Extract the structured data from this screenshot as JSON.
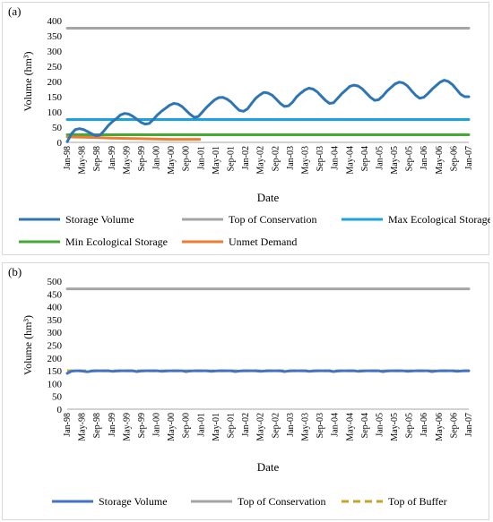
{
  "chart_data": [
    {
      "panel_label": "(a)",
      "type": "line",
      "xlabel": "Date",
      "ylabel": "Volume (hm³)",
      "ylim": [
        0,
        400
      ],
      "yticks": [
        0,
        50,
        100,
        150,
        200,
        250,
        300,
        350,
        400
      ],
      "x_tick_labels": [
        "Jan-98",
        "May-98",
        "Sep-98",
        "Jan-99",
        "May-99",
        "Sep-99",
        "Jan-00",
        "May-00",
        "Sep-00",
        "Jan-01",
        "May-01",
        "Sep-01",
        "Jan-02",
        "May-02",
        "Sep-02",
        "Jan-03",
        "May-03",
        "Sep-03",
        "Jan-04",
        "May-04",
        "Sep-04",
        "Jan-05",
        "May-05",
        "Sep-05",
        "Jan-06",
        "May-06",
        "Sep-06",
        "Jan-07"
      ],
      "grid": false,
      "legend_position": "bottom",
      "series": [
        {
          "name": "Storage Volume",
          "color": "#2e75b6",
          "dashed": false,
          "values": [
            2,
            28,
            42,
            45,
            42,
            35,
            28,
            22,
            24,
            38,
            55,
            68,
            78,
            90,
            95,
            93,
            86,
            76,
            66,
            60,
            62,
            75,
            90,
            102,
            112,
            122,
            128,
            126,
            118,
            105,
            92,
            82,
            85,
            100,
            115,
            128,
            140,
            147,
            148,
            142,
            132,
            118,
            105,
            102,
            110,
            128,
            145,
            156,
            164,
            162,
            155,
            142,
            128,
            118,
            120,
            132,
            150,
            162,
            172,
            178,
            175,
            166,
            152,
            138,
            128,
            130,
            145,
            160,
            172,
            184,
            188,
            185,
            176,
            162,
            148,
            138,
            140,
            152,
            168,
            180,
            192,
            198,
            195,
            186,
            170,
            155,
            145,
            148,
            160,
            174,
            186,
            198,
            204,
            200,
            190,
            174,
            158,
            150,
            150
          ]
        },
        {
          "name": "Top of Conservation",
          "color": "#a5a5a5",
          "dashed": false,
          "values": [
            375,
            375
          ]
        },
        {
          "name": "Max Ecological Storage",
          "color": "#1aa3e0",
          "dashed": false,
          "values": [
            75,
            75
          ]
        },
        {
          "name": "Min Ecological Storage",
          "color": "#44aa33",
          "dashed": false,
          "values": [
            25,
            25
          ]
        },
        {
          "name": "Unmet Demand",
          "color": "#ed7d31",
          "dashed": false,
          "values": [
            18,
            17,
            16,
            14,
            13,
            12,
            11,
            10,
            10,
            10
          ]
        }
      ]
    },
    {
      "panel_label": "(b)",
      "type": "line",
      "xlabel": "Date",
      "ylabel": "Volume (hm³)",
      "ylim": [
        0,
        500
      ],
      "yticks": [
        0,
        50,
        100,
        150,
        200,
        250,
        300,
        350,
        400,
        450,
        500
      ],
      "x_tick_labels": [
        "Jan-98",
        "May-98",
        "Sep-98",
        "Jan-99",
        "May-99",
        "Sep-99",
        "Jan-00",
        "May-00",
        "Sep-00",
        "Jan-01",
        "May-01",
        "Sep-01",
        "Jan-02",
        "May-02",
        "Sep-02",
        "Jan-03",
        "May-03",
        "Sep-03",
        "Jan-04",
        "May-04",
        "Sep-04",
        "Jan-05",
        "May-05",
        "Sep-05",
        "Jan-06",
        "May-06",
        "Sep-06",
        "Jan-07"
      ],
      "grid": false,
      "legend_position": "bottom",
      "series": [
        {
          "name": "Storage Volume",
          "color": "#4472c4",
          "dashed": false,
          "values": [
            140,
            148,
            150,
            150,
            148,
            146,
            149,
            150,
            150,
            150,
            150,
            148,
            149,
            150,
            150,
            150,
            150,
            147,
            149,
            150,
            150,
            150,
            150,
            148,
            149,
            150,
            150,
            150,
            150,
            147,
            149,
            150,
            150,
            150,
            150,
            148,
            149,
            150,
            150,
            150,
            150,
            147,
            149,
            150,
            150,
            150,
            150,
            148,
            149,
            150,
            150,
            150,
            150,
            147,
            149,
            150,
            150,
            150,
            150,
            148,
            149,
            150,
            150,
            150,
            150,
            147,
            149,
            150,
            150,
            150,
            150,
            148,
            149,
            150,
            150,
            150,
            150,
            147,
            149,
            150,
            150,
            150,
            150,
            148,
            149,
            150,
            150,
            150,
            150,
            147,
            149,
            150,
            150,
            150,
            150,
            148,
            149,
            150,
            150
          ]
        },
        {
          "name": "Top of Conservation",
          "color": "#a5a5a5",
          "dashed": false,
          "values": [
            470,
            470
          ]
        },
        {
          "name": "Top of Buffer",
          "color": "#c9a227",
          "dashed": true,
          "values": [
            150,
            150
          ]
        }
      ]
    }
  ]
}
